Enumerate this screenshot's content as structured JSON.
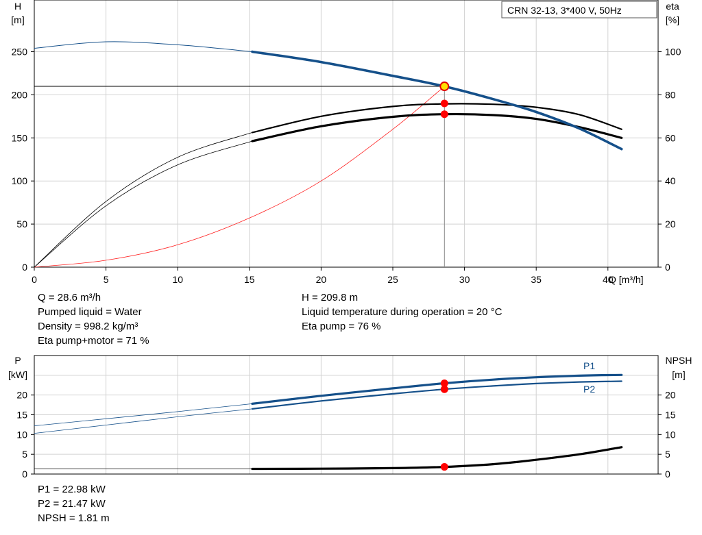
{
  "chart_data": [
    {
      "type": "line",
      "legend_box": "CRN 32-13, 3*400 V, 50Hz",
      "xlabel": "Q [m³/h]",
      "ylabel_left": [
        "H",
        "[m]"
      ],
      "ylabel_right": [
        "eta",
        "[%]"
      ],
      "xlim": [
        0,
        43.5
      ],
      "ylim_left": [
        0,
        310
      ],
      "ylim_right": [
        0,
        124
      ],
      "x_ticks": [
        0,
        5,
        10,
        15,
        20,
        25,
        30,
        35,
        40
      ],
      "y_ticks_left": [
        0,
        50,
        100,
        150,
        200,
        250
      ],
      "y_ticks_right": [
        0,
        20,
        40,
        60,
        80,
        100
      ],
      "grid": true,
      "series": [
        {
          "axis": "left",
          "color": "#15508a",
          "x": [
            0,
            5,
            10,
            15.2,
            20,
            25,
            28.6,
            32,
            35,
            38,
            40.95
          ],
          "y": [
            254,
            261.5,
            258,
            250,
            238,
            222,
            209.8,
            195,
            180,
            161,
            137
          ]
        },
        {
          "axis": "right",
          "color": "#000000",
          "x": [
            0,
            5,
            10,
            15.2,
            20,
            25,
            28.6,
            32,
            35,
            38,
            40.95
          ],
          "y": [
            0,
            30.5,
            51,
            62.5,
            70,
            74.6,
            75.8,
            75.6,
            74.2,
            70.8,
            64
          ]
        },
        {
          "axis": "right",
          "color": "#000000",
          "x": [
            0,
            5,
            10,
            15.2,
            20,
            25,
            28.6,
            32,
            35,
            38,
            40.95
          ],
          "y": [
            0,
            28.5,
            47.5,
            58.5,
            65.4,
            69.8,
            71,
            70.6,
            68.8,
            65,
            60
          ]
        },
        {
          "axis": "left",
          "color": "#ff2020",
          "x": [
            0,
            5,
            10,
            15,
            20,
            25,
            28.6
          ],
          "y": [
            0,
            8,
            26,
            57,
            100,
            160,
            209.8
          ]
        }
      ],
      "duty_point": {
        "x": 28.6,
        "h": 209.8,
        "eta_pump": 76,
        "eta_total": 71
      }
    },
    {
      "type": "line",
      "ylabel_left": [
        "P",
        "[kW]"
      ],
      "ylabel_right": [
        "NPSH",
        "[m]"
      ],
      "xlim": [
        0,
        43.5
      ],
      "ylim_left": [
        0,
        30
      ],
      "ylim_right": [
        0,
        30
      ],
      "y_ticks_left": [
        0,
        5,
        10,
        15,
        20
      ],
      "y_ticks_right": [
        0,
        5,
        10,
        15,
        20
      ],
      "grid": true,
      "series": [
        {
          "name": "P1",
          "axis": "left",
          "color": "#15508a",
          "x": [
            0,
            5,
            10,
            15.2,
            20,
            25,
            28.6,
            32,
            35,
            38,
            40.95
          ],
          "y": [
            12.2,
            14,
            15.8,
            17.8,
            19.8,
            21.7,
            22.98,
            23.9,
            24.5,
            24.9,
            25.1
          ]
        },
        {
          "name": "P2",
          "axis": "left",
          "color": "#15508a",
          "x": [
            0,
            5,
            10,
            15.2,
            20,
            25,
            28.6,
            32,
            35,
            38,
            40.95
          ],
          "y": [
            10.3,
            12.4,
            14.5,
            16.5,
            18.5,
            20.3,
            21.47,
            22.3,
            22.9,
            23.3,
            23.5
          ]
        },
        {
          "axis": "right",
          "color": "#000000",
          "x": [
            0,
            15.2,
            20,
            25,
            28.6,
            32,
            35,
            38,
            40.95
          ],
          "y": [
            1.3,
            1.3,
            1.35,
            1.5,
            1.81,
            2.5,
            3.6,
            5.0,
            6.8
          ]
        }
      ],
      "duty_point": {
        "x": 28.6,
        "p1": 22.98,
        "p2": 21.47,
        "npsh": 1.81
      }
    }
  ],
  "info_top_left": [
    "Q = 28.6 m³/h",
    "Pumped liquid = Water",
    "Density = 998.2 kg/m³",
    "Eta pump+motor = 71 %"
  ],
  "info_top_right": [
    "H = 209.8 m",
    "Liquid temperature during operation = 20 °C",
    "Eta pump = 76 %"
  ],
  "info_bottom": [
    "P1 = 22.98 kW",
    "P2 = 21.47 kW",
    "NPSH = 1.81 m"
  ]
}
